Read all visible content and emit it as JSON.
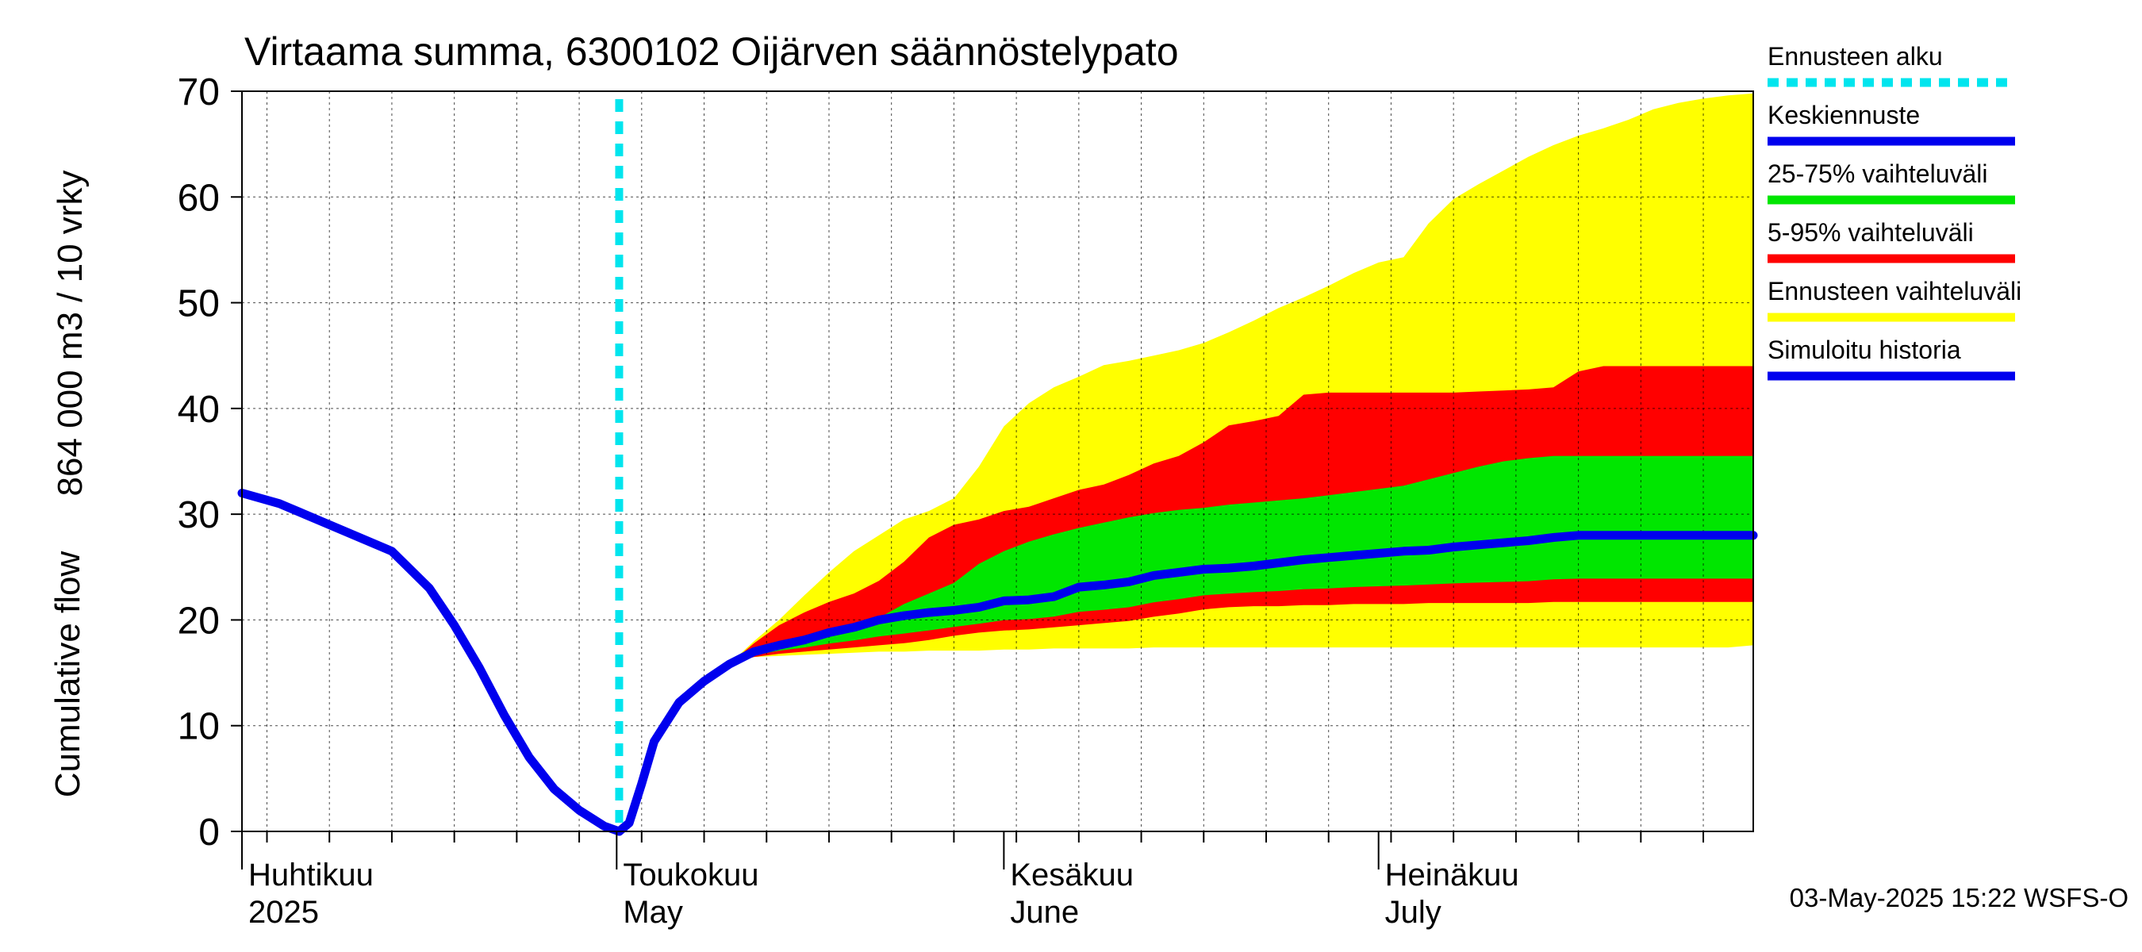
{
  "chart_data": {
    "type": "area",
    "title": "Virtaama summa, 6300102 Oijärven säännöstelypato",
    "ylabel_fi": "864 000 m3 / 10 vrky",
    "ylabel_en": "Cumulative flow",
    "ylim": [
      0,
      70
    ],
    "yticks": [
      0,
      10,
      20,
      30,
      40,
      50,
      60,
      70
    ],
    "x_range_days": [
      0,
      121
    ],
    "month_labels": [
      {
        "day": 0,
        "fi": "Huhtikuu",
        "en": "2025"
      },
      {
        "day": 30,
        "fi": "Toukokuu",
        "en": "May"
      },
      {
        "day": 61,
        "fi": "Kesäkuu",
        "en": "June"
      },
      {
        "day": 91,
        "fi": "Heinäkuu",
        "en": "July"
      }
    ],
    "forecast_start_day": 30.2,
    "legend": [
      {
        "label": "Ennusteen alku",
        "color": "#00e5ee",
        "dashed": true
      },
      {
        "label": "Keskiennuste",
        "color": "#0000ee",
        "dashed": false
      },
      {
        "label": "25-75% vaihteluväli",
        "color": "#00e600",
        "dashed": false
      },
      {
        "label": "5-95% vaihteluväli",
        "color": "#ff0000",
        "dashed": false
      },
      {
        "label": "Ennusteen vaihteluväli",
        "color": "#ffff00",
        "dashed": false
      },
      {
        "label": "Simuloitu historia",
        "color": "#0000ee",
        "dashed": false
      }
    ],
    "simulated_history": {
      "x": [
        0,
        3,
        6,
        9,
        12,
        15,
        17,
        19,
        21,
        23,
        25,
        27,
        29,
        30.2
      ],
      "y": [
        32,
        31,
        29.5,
        28,
        26.5,
        23,
        19.5,
        15.5,
        11,
        7,
        4,
        2,
        0.5,
        0
      ]
    },
    "median": {
      "x": [
        30.2,
        31,
        32,
        33,
        35,
        37,
        39,
        41,
        43,
        45,
        47,
        49,
        51,
        53,
        55,
        57,
        59,
        61,
        63,
        65,
        67,
        69,
        71,
        73,
        75,
        77,
        79,
        81,
        83,
        85,
        87,
        89,
        91,
        93,
        95,
        97,
        99,
        101,
        103,
        105,
        107,
        109,
        111,
        113,
        115,
        117,
        119,
        121
      ],
      "y": [
        0,
        0.8,
        4.5,
        8.5,
        12.2,
        14.2,
        15.8,
        17,
        17.6,
        18.1,
        18.8,
        19.3,
        20,
        20.4,
        20.7,
        20.9,
        21.2,
        21.8,
        21.9,
        22.2,
        23.1,
        23.3,
        23.6,
        24.2,
        24.5,
        24.8,
        24.9,
        25.1,
        25.4,
        25.7,
        25.9,
        26.1,
        26.3,
        26.5,
        26.6,
        26.9,
        27.1,
        27.3,
        27.5,
        27.8,
        28,
        28,
        28,
        28,
        28,
        28,
        28,
        28
      ]
    },
    "bands": {
      "x": [
        30.2,
        31,
        32,
        33,
        35,
        37,
        39,
        41,
        43,
        45,
        47,
        49,
        51,
        53,
        55,
        57,
        59,
        61,
        63,
        65,
        67,
        69,
        71,
        73,
        75,
        77,
        79,
        81,
        83,
        85,
        87,
        89,
        91,
        93,
        95,
        97,
        99,
        101,
        103,
        105,
        107,
        109,
        111,
        113,
        115,
        117,
        119,
        121
      ],
      "p0": [
        0,
        0.8,
        4.5,
        8.5,
        12.2,
        14.2,
        15.8,
        16.5,
        16.6,
        16.7,
        16.8,
        16.9,
        17,
        17,
        17.1,
        17.1,
        17.1,
        17.2,
        17.2,
        17.3,
        17.3,
        17.3,
        17.3,
        17.4,
        17.4,
        17.4,
        17.4,
        17.4,
        17.4,
        17.4,
        17.4,
        17.4,
        17.4,
        17.4,
        17.4,
        17.4,
        17.4,
        17.4,
        17.4,
        17.4,
        17.4,
        17.4,
        17.4,
        17.4,
        17.4,
        17.4,
        17.4,
        17.6
      ],
      "p5": [
        0,
        0.8,
        4.5,
        8.5,
        12.2,
        14.2,
        15.8,
        16.5,
        16.8,
        17,
        17.2,
        17.4,
        17.6,
        17.8,
        18.1,
        18.5,
        18.8,
        19,
        19.1,
        19.3,
        19.5,
        19.7,
        19.9,
        20.3,
        20.6,
        21,
        21.2,
        21.3,
        21.3,
        21.4,
        21.4,
        21.5,
        21.5,
        21.5,
        21.6,
        21.6,
        21.6,
        21.6,
        21.6,
        21.7,
        21.7,
        21.7,
        21.7,
        21.7,
        21.7,
        21.7,
        21.7,
        21.7
      ],
      "p25": [
        0,
        0.8,
        4.5,
        8.5,
        12.2,
        14.2,
        15.8,
        17,
        17.4,
        17.8,
        18.5,
        19.2,
        20.2,
        21.5,
        22.5,
        23.5,
        25.3,
        26.5,
        27.4,
        28.1,
        28.7,
        29.2,
        29.7,
        30.1,
        30.4,
        30.6,
        30.9,
        31.1,
        31.3,
        31.5,
        31.8,
        32.1,
        32.4,
        32.7,
        33.3,
        33.9,
        34.5,
        35,
        35.3,
        35.5,
        35.5,
        35.5,
        35.5,
        35.5,
        35.5,
        35.5,
        35.5,
        35.5
      ],
      "p95": [
        0,
        0.8,
        4.5,
        8.5,
        12.2,
        14.2,
        15.8,
        17.8,
        19.5,
        20.7,
        21.7,
        22.5,
        23.7,
        25.5,
        27.8,
        29,
        29.5,
        30.3,
        30.7,
        31.5,
        32.3,
        32.8,
        33.7,
        34.8,
        35.5,
        36.8,
        38.4,
        38.8,
        39.3,
        41.3,
        41.5,
        41.5,
        41.5,
        41.5,
        41.5,
        41.5,
        41.6,
        41.7,
        41.8,
        42,
        43.5,
        44,
        44,
        44,
        44,
        44,
        44,
        44
      ],
      "p100": [
        0,
        0.8,
        4.5,
        8.5,
        12.2,
        14.2,
        15.8,
        18,
        20,
        22.3,
        24.5,
        26.5,
        28,
        29.5,
        30.3,
        31.5,
        34.5,
        38.3,
        40.5,
        42,
        43,
        44.1,
        44.5,
        45,
        45.5,
        46.2,
        47.2,
        48.3,
        49.5,
        50.5,
        51.6,
        52.8,
        53.8,
        54.3,
        57.5,
        59.8,
        61.2,
        62.5,
        63.8,
        64.9,
        65.8,
        66.5,
        67.3,
        68.3,
        68.9,
        69.3,
        69.6,
        69.8
      ]
    },
    "timestamp": "03-May-2025 15:22 WSFS-O"
  }
}
